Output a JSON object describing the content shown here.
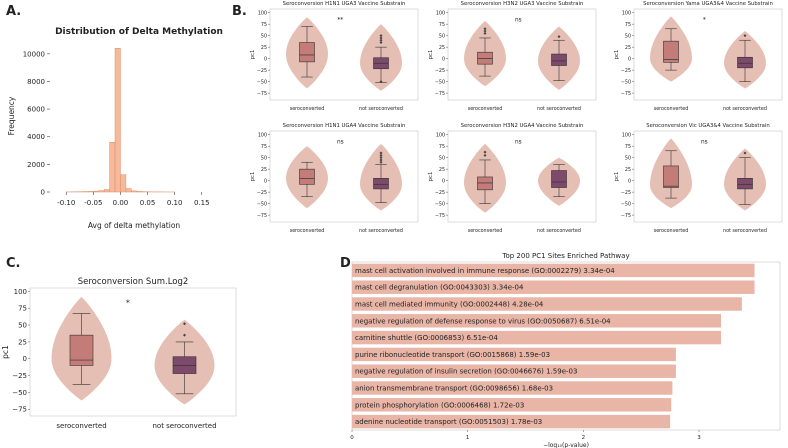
{
  "panel_labels": {
    "a": "A.",
    "b": "B.",
    "c": "C.",
    "d": "D."
  },
  "colors": {
    "hist": "#f7b99a",
    "violin": "#e6bfb4",
    "box_sero": "#c47c78",
    "box_not": "#7d4a6b",
    "bar": "#e9b5a6"
  },
  "chart_data": [
    {
      "id": "A",
      "type": "bar",
      "title": "Distribution of Delta Methylation",
      "xlabel": "Avg of delta methylation",
      "ylabel": "Frequency",
      "xlim": [
        -0.13,
        0.18
      ],
      "ylim": [
        0,
        11000
      ],
      "xticks": [
        -0.1,
        -0.05,
        0,
        0.05,
        0.1,
        0.15
      ],
      "xtick_labels": [
        "-0.10",
        "-0.05",
        "0.00",
        "0.05",
        "0.10",
        "0.15"
      ],
      "yticks": [
        0,
        2000,
        4000,
        6000,
        8000,
        10000
      ],
      "ytick_labels": [
        "0",
        "2000",
        "4000",
        "6000",
        "8000",
        "10000"
      ],
      "bin_edges": [
        -0.1,
        -0.09,
        -0.08,
        -0.07,
        -0.06,
        -0.05,
        -0.04,
        -0.03,
        -0.02,
        -0.01,
        0,
        0.01,
        0.02,
        0.03,
        0.04,
        0.05,
        0.06,
        0.07,
        0.08,
        0.09,
        0.1
      ],
      "counts": [
        10,
        15,
        20,
        30,
        40,
        60,
        100,
        180,
        3600,
        10400,
        1250,
        250,
        80,
        40,
        25,
        15,
        10,
        8,
        5,
        3
      ]
    },
    {
      "id": "B1",
      "type": "box",
      "title": "Seroconversion H1N1 UGA3 Vaccine Substrain",
      "ylabel": "pc1",
      "significance": "**",
      "yticks": [
        -75,
        -50,
        -25,
        0,
        25,
        50,
        75,
        100
      ],
      "ytick_labels": [
        "−75",
        "−50",
        "−25",
        "0",
        "25",
        "50",
        "75",
        "100"
      ],
      "ylim": [
        -90,
        108
      ],
      "categories": [
        "seroconverted",
        "not seroconverted"
      ],
      "groups": [
        {
          "min": -40,
          "q1": -7,
          "median": 8,
          "q3": 35,
          "max": 70,
          "vmin": -65,
          "vmax": 90,
          "vpeak": 10,
          "outliers": []
        },
        {
          "min": -52,
          "q1": -22,
          "median": -10,
          "q3": 2,
          "max": 25,
          "vmin": -70,
          "vmax": 75,
          "vpeak": -10,
          "outliers": [
            35,
            40,
            45,
            50,
            -50
          ]
        }
      ]
    },
    {
      "id": "B2",
      "type": "box",
      "title": "Seroconversion H3N2 UGA3 Vaccine Substrain",
      "ylabel": "pc1",
      "significance": "ns",
      "yticks": [
        -75,
        -50,
        -25,
        0,
        25,
        50,
        75,
        100
      ],
      "ytick_labels": [
        "−75",
        "−50",
        "−25",
        "0",
        "25",
        "50",
        "75",
        "100"
      ],
      "ylim": [
        -90,
        108
      ],
      "categories": [
        "seroconverted",
        "not seroconverted"
      ],
      "groups": [
        {
          "min": -38,
          "q1": -12,
          "median": 0,
          "q3": 14,
          "max": 45,
          "vmin": -60,
          "vmax": 82,
          "vpeak": 0,
          "outliers": [
            55,
            60,
            65
          ]
        },
        {
          "min": -48,
          "q1": -15,
          "median": -5,
          "q3": 10,
          "max": 40,
          "vmin": -68,
          "vmax": 70,
          "vpeak": -5,
          "outliers": [
            48
          ]
        }
      ]
    },
    {
      "id": "B3",
      "type": "box",
      "title": "Seroconversion Yama UGA3&4 Vaccine Substrain",
      "ylabel": "pc1",
      "significance": "*",
      "yticks": [
        -75,
        -50,
        -25,
        0,
        25,
        50,
        75,
        100
      ],
      "ytick_labels": [
        "−75",
        "−50",
        "−25",
        "0",
        "25",
        "50",
        "75",
        "100"
      ],
      "ylim": [
        -90,
        108
      ],
      "categories": [
        "seroconverted",
        "not seroconverted"
      ],
      "groups": [
        {
          "min": -25,
          "q1": -8,
          "median": -2,
          "q3": 38,
          "max": 65,
          "vmin": -50,
          "vmax": 92,
          "vpeak": 0,
          "outliers": []
        },
        {
          "min": -50,
          "q1": -20,
          "median": -10,
          "q3": 3,
          "max": 40,
          "vmin": -65,
          "vmax": 60,
          "vpeak": -10,
          "outliers": [
            50
          ]
        }
      ]
    },
    {
      "id": "B4",
      "type": "box",
      "title": "Seroconversion H1N1 UGA4 Vaccine Substrain",
      "ylabel": "pc1",
      "significance": "ns",
      "yticks": [
        -75,
        -50,
        -25,
        0,
        25,
        50,
        75,
        100
      ],
      "ytick_labels": [
        "−75",
        "−50",
        "−25",
        "0",
        "25",
        "50",
        "75",
        "100"
      ],
      "ylim": [
        -90,
        108
      ],
      "categories": [
        "seroconverted",
        "not seroconverted"
      ],
      "groups": [
        {
          "min": -35,
          "q1": -8,
          "median": 5,
          "q3": 25,
          "max": 40,
          "vmin": -60,
          "vmax": 75,
          "vpeak": 5,
          "outliers": []
        },
        {
          "min": -48,
          "q1": -18,
          "median": -8,
          "q3": 5,
          "max": 35,
          "vmin": -65,
          "vmax": 80,
          "vpeak": -8,
          "outliers": [
            40,
            45,
            50,
            55,
            60
          ]
        }
      ]
    },
    {
      "id": "B5",
      "type": "box",
      "title": "Seroconversion H3N2 UGA4 Vaccine Substrain",
      "ylabel": "pc1",
      "significance": "ns",
      "yticks": [
        -75,
        -50,
        -25,
        0,
        25,
        50,
        75,
        100
      ],
      "ytick_labels": [
        "−75",
        "−50",
        "−25",
        "0",
        "25",
        "50",
        "75",
        "100"
      ],
      "ylim": [
        -90,
        108
      ],
      "categories": [
        "seroconverted",
        "not seroconverted"
      ],
      "groups": [
        {
          "min": -50,
          "q1": -20,
          "median": -5,
          "q3": 8,
          "max": 45,
          "vmin": -70,
          "vmax": 80,
          "vpeak": -5,
          "outliers": [
            55,
            62
          ]
        },
        {
          "min": -35,
          "q1": -15,
          "median": -3,
          "q3": 22,
          "max": 35,
          "vmin": -55,
          "vmax": 50,
          "vpeak": 0,
          "outliers": []
        }
      ]
    },
    {
      "id": "B6",
      "type": "box",
      "title": "Seroconversion Vic UGA3&4 Vaccine Substrain",
      "ylabel": "pc1",
      "significance": "ns",
      "yticks": [
        -75,
        -50,
        -25,
        0,
        25,
        50,
        75,
        100
      ],
      "ytick_labels": [
        "−75",
        "−50",
        "−25",
        "0",
        "25",
        "50",
        "75",
        "100"
      ],
      "ylim": [
        -90,
        108
      ],
      "categories": [
        "seroconverted",
        "not seroconverted"
      ],
      "groups": [
        {
          "min": -38,
          "q1": -15,
          "median": -12,
          "q3": 32,
          "max": 65,
          "vmin": -60,
          "vmax": 92,
          "vpeak": -10,
          "outliers": []
        },
        {
          "min": -52,
          "q1": -18,
          "median": -8,
          "q3": 5,
          "max": 50,
          "vmin": -65,
          "vmax": 70,
          "vpeak": -8,
          "outliers": [
            60
          ]
        }
      ]
    },
    {
      "id": "C",
      "type": "box",
      "title": "Seroconversion Sum.Log2",
      "ylabel": "pc1",
      "significance": "*",
      "yticks": [
        -75,
        -50,
        -25,
        0,
        25,
        50,
        75,
        100
      ],
      "ytick_labels": [
        "−75",
        "−50",
        "−25",
        "0",
        "25",
        "50",
        "75",
        "100"
      ],
      "ylim": [
        -85,
        105
      ],
      "categories": [
        "seroconverted",
        "not seroconverted"
      ],
      "groups": [
        {
          "min": -38,
          "q1": -10,
          "median": -2,
          "q3": 35,
          "max": 67,
          "vmin": -62,
          "vmax": 92,
          "vpeak": 0,
          "outliers": []
        },
        {
          "min": -52,
          "q1": -22,
          "median": -10,
          "q3": 3,
          "max": 25,
          "vmin": -68,
          "vmax": 58,
          "vpeak": -10,
          "outliers": [
            35,
            52
          ]
        }
      ]
    },
    {
      "id": "D",
      "type": "bar",
      "orientation": "horizontal",
      "title": "Top 200 PC1 Sites Enriched Pathway",
      "xlabel": "−log₁₀(p-value)",
      "xlim": [
        0,
        3.7
      ],
      "xticks": [
        0,
        1,
        2,
        3
      ],
      "xtick_labels": [
        "0",
        "1",
        "2",
        "3"
      ],
      "categories": [
        "mast cell activation involved in immune response (GO:0002279)  3.34e-04",
        "mast cell degranulation (GO:0043303)  3.34e-04",
        "mast cell mediated immunity (GO:0002448)  4.28e-04",
        "negative regulation of defense response to virus (GO:0050687)  6.51e-04",
        "carnitine shuttle (GO:0006853)  6.51e-04",
        "purine ribonucleotide transport (GO:0015868)  1.59e-03",
        "negative regulation of insulin secretion (GO:0046676)  1.59e-03",
        "anion transmembrane transport (GO:0098656)  1.68e-03",
        "protein phosphorylation (GO:0006468)  1.72e-03",
        "adenine nucleotide transport (GO:0051503)  1.78e-03"
      ],
      "values": [
        3.48,
        3.48,
        3.37,
        3.19,
        3.19,
        2.8,
        2.8,
        2.77,
        2.76,
        2.75
      ]
    }
  ]
}
